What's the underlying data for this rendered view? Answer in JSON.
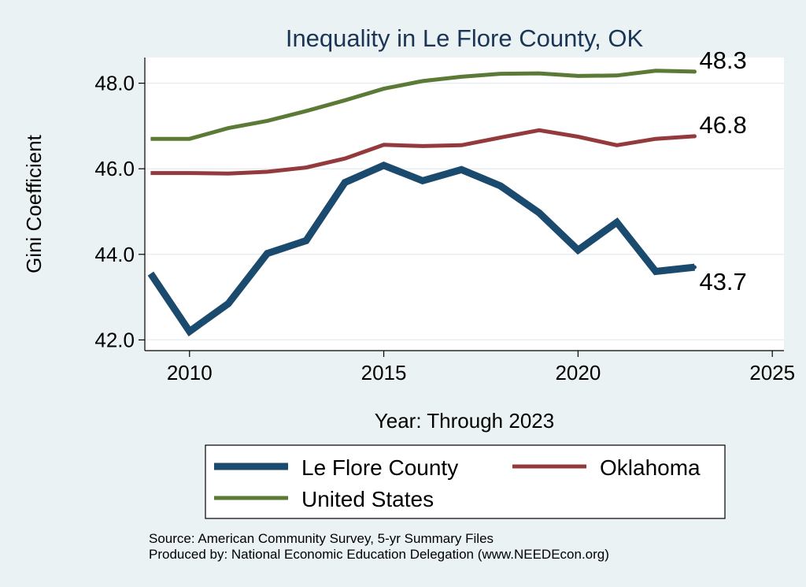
{
  "chart_data": {
    "type": "line",
    "title": "Inequality in Le Flore County, OK",
    "xlabel": "Year: Through 2023",
    "ylabel": "Gini Coefficient",
    "xlim": [
      2008.85,
      2025.3
    ],
    "ylim": [
      41.75,
      48.6
    ],
    "x_ticks": [
      2010,
      2015,
      2020,
      2025
    ],
    "y_ticks": [
      42.0,
      44.0,
      46.0,
      48.0
    ],
    "y_tick_labels": [
      "42.0",
      "44.0",
      "46.0",
      "48.0"
    ],
    "grid": true,
    "x": [
      2009,
      2010,
      2011,
      2012,
      2013,
      2014,
      2015,
      2016,
      2017,
      2018,
      2019,
      2020,
      2021,
      2022,
      2023
    ],
    "series": [
      {
        "name": "Le Flore County",
        "color": "#1a4a6e",
        "values": [
          43.55,
          42.2,
          42.85,
          44.02,
          44.32,
          45.68,
          46.08,
          45.72,
          45.98,
          45.6,
          44.97,
          44.1,
          44.75,
          43.6,
          43.7
        ],
        "end_label": "43.7"
      },
      {
        "name": "Oklahoma",
        "color": "#943a3c",
        "values": [
          45.9,
          45.9,
          45.89,
          45.93,
          46.03,
          46.24,
          46.56,
          46.53,
          46.55,
          46.73,
          46.9,
          46.75,
          46.55,
          46.7,
          46.76
        ],
        "end_label": "46.8"
      },
      {
        "name": "United States",
        "color": "#5a7a36",
        "values": [
          46.7,
          46.7,
          46.95,
          47.12,
          47.35,
          47.6,
          47.87,
          48.05,
          48.15,
          48.22,
          48.23,
          48.17,
          48.18,
          48.29,
          48.27
        ],
        "end_label": "48.3"
      }
    ],
    "legend": {
      "position": "bottom",
      "entries": [
        "Le Flore County",
        "Oklahoma",
        "United States"
      ]
    },
    "notes": [
      "Source: American Community Survey, 5-yr Summary Files",
      "Produced by: National Economic Education Delegation (www.NEEDEcon.org)"
    ]
  }
}
